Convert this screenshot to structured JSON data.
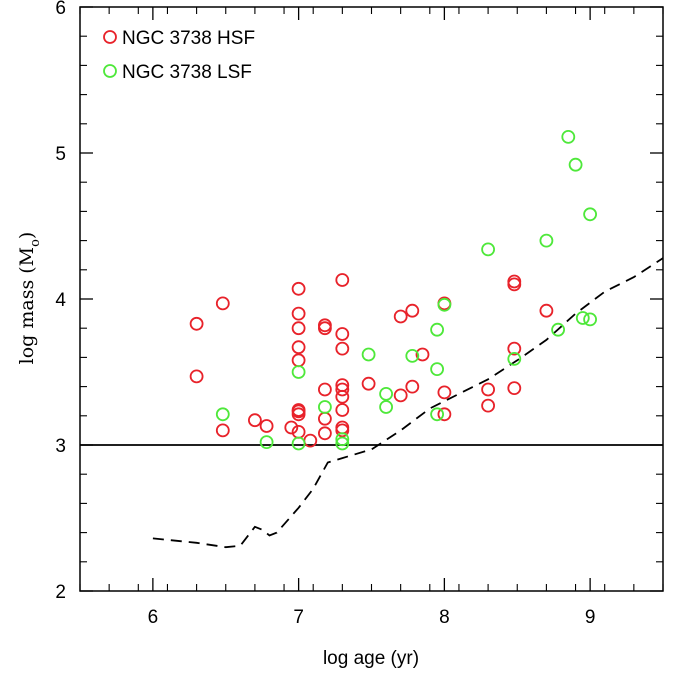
{
  "chart_data": {
    "type": "scatter",
    "title": "",
    "xlabel": "log age (yr)",
    "ylabel": "log mass (M",
    "ylabel_sub": "o",
    "ylabel_close": ")",
    "xlim": [
      5.5,
      9.5
    ],
    "ylim": [
      2,
      6
    ],
    "x_ticks": [
      6,
      7,
      8,
      9
    ],
    "y_ticks": [
      2,
      3,
      4,
      5,
      6
    ],
    "x_tick_labels": [
      "6",
      "7",
      "8",
      "9"
    ],
    "y_tick_labels": [
      "2",
      "3",
      "4",
      "5",
      "6"
    ],
    "legend_position": "top-left",
    "hline": 3.0,
    "dashed_curve": [
      [
        6.0,
        2.36
      ],
      [
        6.3,
        2.33
      ],
      [
        6.5,
        2.3
      ],
      [
        6.6,
        2.31
      ],
      [
        6.7,
        2.44
      ],
      [
        6.75,
        2.42
      ],
      [
        6.8,
        2.38
      ],
      [
        6.85,
        2.4
      ],
      [
        7.0,
        2.57
      ],
      [
        7.1,
        2.7
      ],
      [
        7.2,
        2.88
      ],
      [
        7.3,
        2.91
      ],
      [
        7.5,
        2.97
      ],
      [
        7.7,
        3.1
      ],
      [
        7.9,
        3.25
      ],
      [
        8.1,
        3.35
      ],
      [
        8.3,
        3.45
      ],
      [
        8.5,
        3.58
      ],
      [
        8.7,
        3.72
      ],
      [
        8.9,
        3.9
      ],
      [
        9.1,
        4.05
      ],
      [
        9.3,
        4.15
      ],
      [
        9.5,
        4.28
      ]
    ],
    "series": [
      {
        "name": "NGC 3738 HSF",
        "color": "#e8222a",
        "points": [
          [
            6.3,
            3.83
          ],
          [
            6.3,
            3.47
          ],
          [
            6.48,
            3.97
          ],
          [
            6.48,
            3.1
          ],
          [
            6.7,
            3.17
          ],
          [
            6.78,
            3.13
          ],
          [
            6.95,
            3.12
          ],
          [
            7.0,
            4.07
          ],
          [
            7.0,
            3.9
          ],
          [
            7.0,
            3.8
          ],
          [
            7.0,
            3.67
          ],
          [
            7.0,
            3.58
          ],
          [
            7.0,
            3.24
          ],
          [
            7.0,
            3.23
          ],
          [
            7.0,
            3.21
          ],
          [
            7.0,
            3.09
          ],
          [
            7.08,
            3.03
          ],
          [
            7.18,
            3.82
          ],
          [
            7.18,
            3.8
          ],
          [
            7.18,
            3.38
          ],
          [
            7.18,
            3.18
          ],
          [
            7.18,
            3.08
          ],
          [
            7.3,
            4.13
          ],
          [
            7.3,
            3.76
          ],
          [
            7.3,
            3.66
          ],
          [
            7.3,
            3.41
          ],
          [
            7.3,
            3.38
          ],
          [
            7.3,
            3.33
          ],
          [
            7.3,
            3.24
          ],
          [
            7.3,
            3.12
          ],
          [
            7.3,
            3.1
          ],
          [
            7.48,
            3.42
          ],
          [
            7.7,
            3.88
          ],
          [
            7.7,
            3.34
          ],
          [
            7.78,
            3.92
          ],
          [
            7.78,
            3.4
          ],
          [
            7.85,
            3.62
          ],
          [
            8.0,
            3.97
          ],
          [
            8.0,
            3.36
          ],
          [
            8.0,
            3.21
          ],
          [
            8.3,
            3.38
          ],
          [
            8.3,
            3.27
          ],
          [
            8.48,
            4.12
          ],
          [
            8.48,
            4.1
          ],
          [
            8.48,
            3.66
          ],
          [
            8.48,
            3.39
          ],
          [
            8.7,
            3.92
          ]
        ]
      },
      {
        "name": "NGC 3738 LSF",
        "color": "#4ee83a",
        "points": [
          [
            6.48,
            3.21
          ],
          [
            6.78,
            3.02
          ],
          [
            7.0,
            3.5
          ],
          [
            7.0,
            3.01
          ],
          [
            7.18,
            3.26
          ],
          [
            7.3,
            3.04
          ],
          [
            7.3,
            3.01
          ],
          [
            7.48,
            3.62
          ],
          [
            7.6,
            3.35
          ],
          [
            7.6,
            3.26
          ],
          [
            7.78,
            3.61
          ],
          [
            7.95,
            3.79
          ],
          [
            7.95,
            3.52
          ],
          [
            7.95,
            3.21
          ],
          [
            8.0,
            3.96
          ],
          [
            8.3,
            4.34
          ],
          [
            8.48,
            3.59
          ],
          [
            8.7,
            4.4
          ],
          [
            8.78,
            3.79
          ],
          [
            8.85,
            5.11
          ],
          [
            8.9,
            4.92
          ],
          [
            8.95,
            3.87
          ],
          [
            9.0,
            4.58
          ],
          [
            9.0,
            3.86
          ]
        ]
      }
    ]
  }
}
